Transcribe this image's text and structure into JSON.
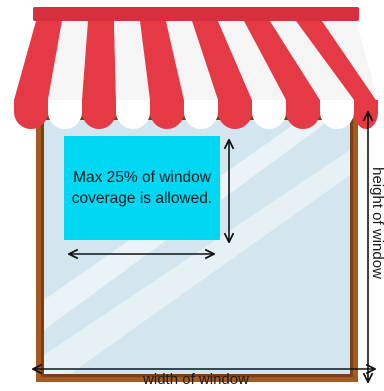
{
  "diagram": {
    "note_text": "Max 25% of window coverage is allowed.",
    "width_label": "width of window",
    "height_label": "height of window"
  },
  "colors": {
    "frame": "#a55a22",
    "frame_dark": "#7a3f14",
    "glass": "#d3e6ef",
    "glass_shine": "#eef6fa",
    "awning_red": "#e63946",
    "awning_white": "#f5f5f5",
    "awning_top": "#d62f3d",
    "note_box": "#00d7f2",
    "arrow": "#111111"
  }
}
